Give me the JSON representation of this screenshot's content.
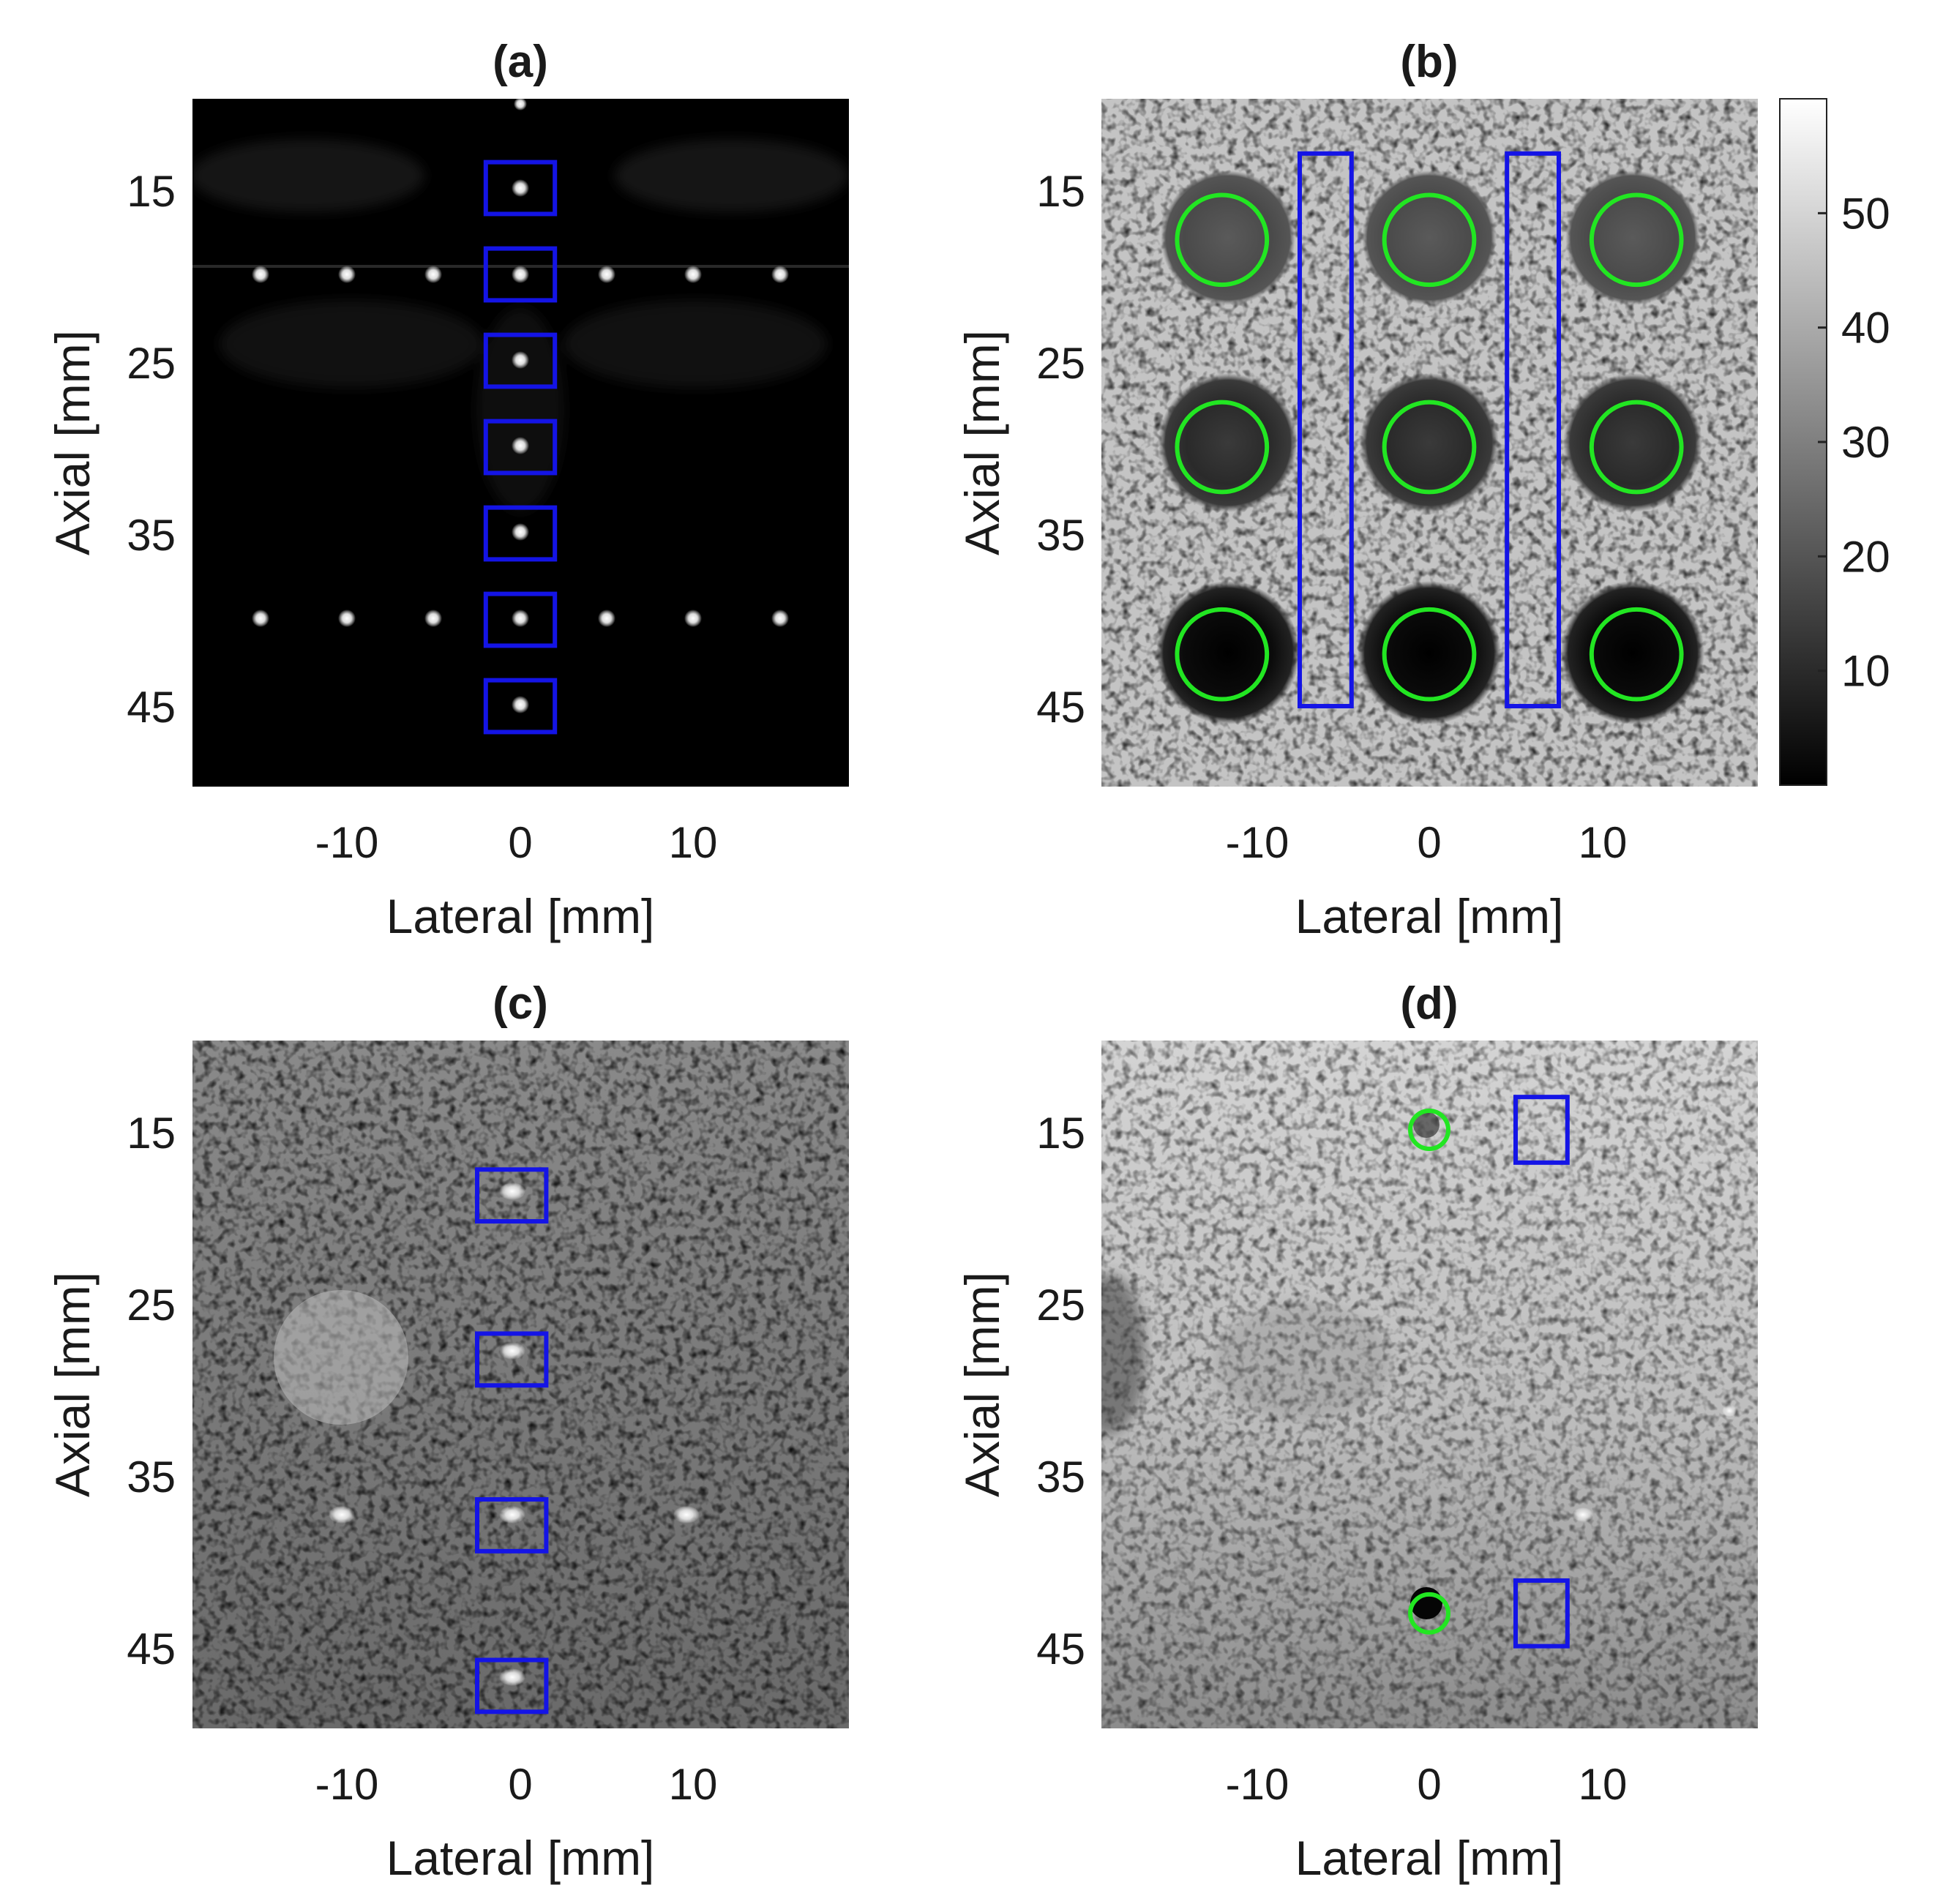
{
  "colors": {
    "roi_box": "#1414e6",
    "roi_circle": "#22e622",
    "background": "#ffffff",
    "text": "#1a1a1a"
  },
  "panels": [
    {
      "id": "a",
      "title": "(a)",
      "xlabel": "Lateral [mm]",
      "ylabel": "Axial [mm]",
      "xticks": [
        "-10",
        "0",
        "10"
      ],
      "yticks": [
        "15",
        "25",
        "35",
        "45"
      ],
      "image": "point-target-phantom-dark",
      "rois": [
        {
          "shape": "rect",
          "cx": 0,
          "cy": 15,
          "w": 4,
          "h": 3
        },
        {
          "shape": "rect",
          "cx": 0,
          "cy": 20,
          "w": 4,
          "h": 3
        },
        {
          "shape": "rect",
          "cx": 0,
          "cy": 25,
          "w": 4,
          "h": 3
        },
        {
          "shape": "rect",
          "cx": 0,
          "cy": 30,
          "w": 4,
          "h": 3
        },
        {
          "shape": "rect",
          "cx": 0,
          "cy": 35,
          "w": 4,
          "h": 3
        },
        {
          "shape": "rect",
          "cx": 0,
          "cy": 40,
          "w": 4,
          "h": 3
        },
        {
          "shape": "rect",
          "cx": 0,
          "cy": 45,
          "w": 4,
          "h": 3
        }
      ]
    },
    {
      "id": "b",
      "title": "(b)",
      "xlabel": "Lateral [mm]",
      "ylabel": "Axial [mm]",
      "xticks": [
        "-10",
        "0",
        "10"
      ],
      "yticks": [
        "15",
        "25",
        "35",
        "45"
      ],
      "image": "cyst-phantom-speckle",
      "rois": [
        {
          "shape": "rect",
          "cx": -6,
          "cy": 29,
          "w": 3,
          "h": 32
        },
        {
          "shape": "rect",
          "cx": 6,
          "cy": 29,
          "w": 3,
          "h": 32
        },
        {
          "shape": "circle",
          "cx": -12,
          "cy": 18,
          "r": 2.6
        },
        {
          "shape": "circle",
          "cx": 0,
          "cy": 18,
          "r": 2.6
        },
        {
          "shape": "circle",
          "cx": 12,
          "cy": 18,
          "r": 2.6
        },
        {
          "shape": "circle",
          "cx": -12,
          "cy": 30,
          "r": 2.6
        },
        {
          "shape": "circle",
          "cx": 0,
          "cy": 30,
          "r": 2.6
        },
        {
          "shape": "circle",
          "cx": 12,
          "cy": 30,
          "r": 2.6
        },
        {
          "shape": "circle",
          "cx": -12,
          "cy": 42,
          "r": 2.6
        },
        {
          "shape": "circle",
          "cx": 0,
          "cy": 42,
          "r": 2.6
        },
        {
          "shape": "circle",
          "cx": 12,
          "cy": 42,
          "r": 2.6
        }
      ],
      "colorbar": {
        "ticks": [
          "50",
          "40",
          "30",
          "20",
          "10"
        ],
        "values": [
          50,
          40,
          30,
          20,
          10
        ],
        "range": [
          0,
          60
        ]
      }
    },
    {
      "id": "c",
      "title": "(c)",
      "xlabel": "Lateral [mm]",
      "ylabel": "Axial [mm]",
      "xticks": [
        "-10",
        "0",
        "10"
      ],
      "yticks": [
        "15",
        "25",
        "35",
        "45"
      ],
      "image": "in-vitro-phantom-points-inclusion",
      "rois": [
        {
          "shape": "rect",
          "cx": -0.5,
          "cy": 18.8,
          "w": 4,
          "h": 3
        },
        {
          "shape": "rect",
          "cx": -0.5,
          "cy": 28.3,
          "w": 4,
          "h": 3
        },
        {
          "shape": "rect",
          "cx": -0.5,
          "cy": 37.9,
          "w": 4,
          "h": 3
        },
        {
          "shape": "rect",
          "cx": -0.5,
          "cy": 47.2,
          "w": 4,
          "h": 3
        }
      ]
    },
    {
      "id": "d",
      "title": "(d)",
      "xlabel": "Lateral [mm]",
      "ylabel": "Axial [mm]",
      "xticks": [
        "-10",
        "0",
        "10"
      ],
      "yticks": [
        "15",
        "25",
        "35",
        "45"
      ],
      "image": "in-vitro-phantom-cysts",
      "rois": [
        {
          "shape": "circle",
          "cx": 0,
          "cy": 15,
          "r": 1.1
        },
        {
          "shape": "circle",
          "cx": 0,
          "cy": 43,
          "r": 1.1
        },
        {
          "shape": "rect",
          "cx": 6.5,
          "cy": 15,
          "w": 3,
          "h": 3.8
        },
        {
          "shape": "rect",
          "cx": 6.5,
          "cy": 43,
          "w": 3,
          "h": 3.8
        }
      ]
    }
  ]
}
